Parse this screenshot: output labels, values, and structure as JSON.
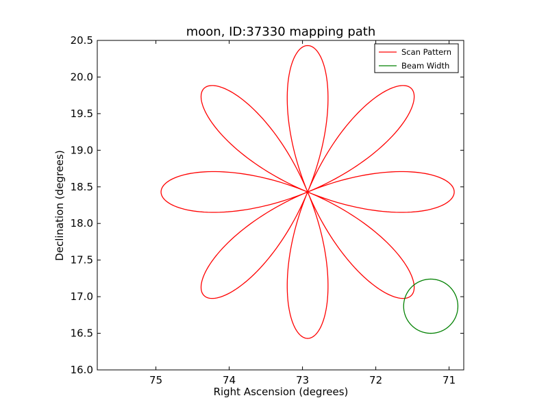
{
  "chart_data": {
    "type": "line",
    "title": "moon, ID:37330 mapping path",
    "xlabel": "Right Ascension (degrees)",
    "ylabel": "Declination (degrees)",
    "xlim": [
      75.8,
      70.8
    ],
    "ylim": [
      16.0,
      20.5
    ],
    "x_inverted": true,
    "grid": false,
    "xticks": [
      75,
      74,
      73,
      72,
      71
    ],
    "xtick_labels": [
      "75",
      "74",
      "73",
      "72",
      "71"
    ],
    "yticks": [
      16.0,
      16.5,
      17.0,
      17.5,
      18.0,
      18.5,
      19.0,
      19.5,
      20.0,
      20.5
    ],
    "ytick_labels": [
      "16.0",
      "16.5",
      "17.0",
      "17.5",
      "18.0",
      "18.5",
      "19.0",
      "19.5",
      "20.0",
      "20.5"
    ],
    "legend_position": "top-right",
    "series": [
      {
        "name": "Scan Pattern",
        "color": "#ff0000",
        "kind": "rose",
        "center": [
          72.93,
          18.43
        ],
        "radius": 2.0,
        "petals": 8,
        "phase_deg": 0
      },
      {
        "name": "Beam Width",
        "color": "#008000",
        "kind": "circle",
        "center": [
          71.25,
          16.87
        ],
        "radius": 0.37
      }
    ]
  }
}
